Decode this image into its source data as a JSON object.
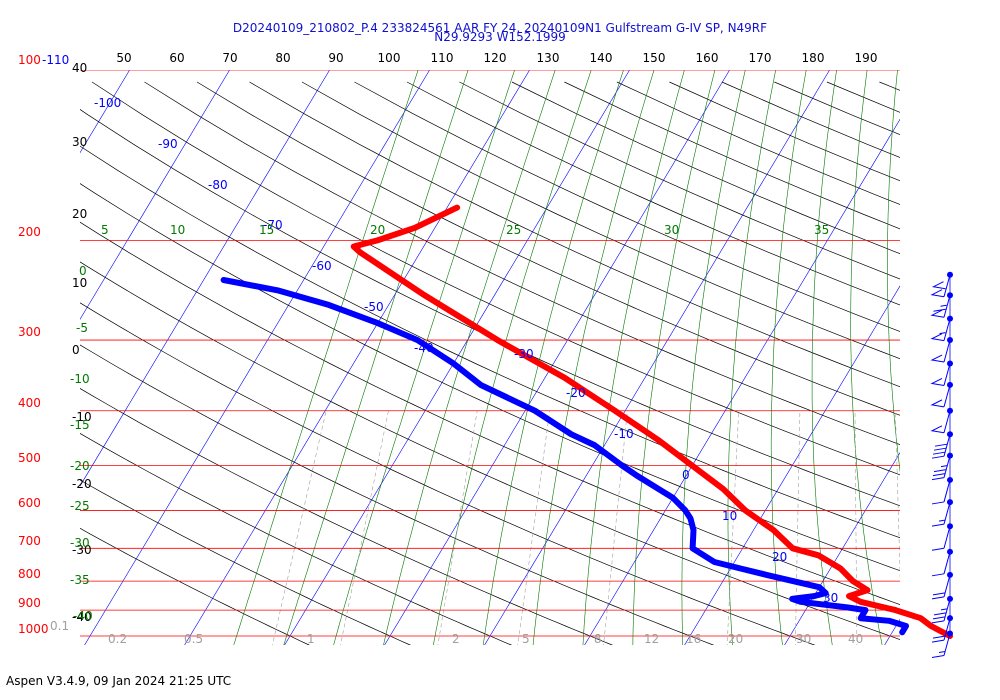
{
  "header": {
    "line1": "D20240109_210802_P.4 233824561 AAR FY 24, 20240109N1 Gulfstream G-IV SP, N49RF",
    "line2": "N29.9293 W152.1999"
  },
  "footer": {
    "text": "Aspen V3.4.9, 09 Jan 2024  21:25 UTC"
  },
  "chart_data": {
    "type": "skew-t",
    "colors": {
      "isobar": "#ff0000",
      "isotherm": "#0000ff",
      "dry_adiabat": "#000000",
      "moist_adiabat": "#007a00",
      "mixing_ratio": "#a0a0a0",
      "temperature": "#ff0000",
      "dewpoint": "#0000ff",
      "wind": "#0000ff"
    },
    "pressure_labels": [
      "100-110",
      "200",
      "300",
      "400",
      "500",
      "600",
      "700",
      "800",
      "900",
      "1000"
    ],
    "pressure_levels": [
      100,
      200,
      300,
      400,
      500,
      600,
      700,
      800,
      900,
      1000
    ],
    "top_scale_labels": [
      "50",
      "60",
      "70",
      "80",
      "90",
      "100",
      "110",
      "120",
      "130",
      "140",
      "150",
      "160",
      "170",
      "180",
      "190"
    ],
    "left_scale_labels": [
      "40",
      "30",
      "20",
      "10",
      "0",
      "-10",
      "-20",
      "-30",
      "-40"
    ],
    "isotherm_labels": [
      "-100",
      "-90",
      "-80",
      "-70",
      "-60",
      "-50",
      "-40",
      "-30",
      "-20",
      "-10",
      "0",
      "10",
      "20",
      "30"
    ],
    "moist_adiabat_labels": [
      "5",
      "10",
      "15",
      "20",
      "25",
      "30",
      "35",
      "0",
      "-5",
      "-10",
      "-15",
      "-20",
      "-25",
      "-30",
      "-35",
      "-40"
    ],
    "mixing_ratio_labels": [
      "0.1",
      "0.2",
      "0.5",
      "1",
      "2",
      "5",
      "8",
      "12",
      "16",
      "20",
      "30",
      "40"
    ],
    "temperature_profile": [
      {
        "p": 1000,
        "t": 26
      },
      {
        "p": 960,
        "t": 23.5
      },
      {
        "p": 930,
        "t": 22
      },
      {
        "p": 900,
        "t": 19
      },
      {
        "p": 870,
        "t": 15
      },
      {
        "p": 850,
        "t": 13.5
      },
      {
        "p": 830,
        "t": 15
      },
      {
        "p": 800,
        "t": 13
      },
      {
        "p": 760,
        "t": 11
      },
      {
        "p": 720,
        "t": 8
      },
      {
        "p": 700,
        "t": 5
      },
      {
        "p": 650,
        "t": 2
      },
      {
        "p": 600,
        "t": -2
      },
      {
        "p": 550,
        "t": -5.5
      },
      {
        "p": 500,
        "t": -10
      },
      {
        "p": 450,
        "t": -15
      },
      {
        "p": 400,
        "t": -21
      },
      {
        "p": 350,
        "t": -28
      },
      {
        "p": 300,
        "t": -37
      },
      {
        "p": 250,
        "t": -47
      },
      {
        "p": 210,
        "t": -56
      },
      {
        "p": 205,
        "t": -57
      },
      {
        "p": 200,
        "t": -55
      },
      {
        "p": 190,
        "t": -52
      },
      {
        "p": 175,
        "t": -49
      }
    ],
    "dewpoint_profile": [
      {
        "p": 985,
        "t": 21
      },
      {
        "p": 960,
        "t": 21
      },
      {
        "p": 940,
        "t": 19
      },
      {
        "p": 930,
        "t": 16
      },
      {
        "p": 900,
        "t": 16
      },
      {
        "p": 890,
        "t": 14
      },
      {
        "p": 870,
        "t": 9
      },
      {
        "p": 860,
        "t": 8
      },
      {
        "p": 850,
        "t": 10
      },
      {
        "p": 840,
        "t": 11
      },
      {
        "p": 820,
        "t": 10
      },
      {
        "p": 800,
        "t": 7
      },
      {
        "p": 780,
        "t": 4
      },
      {
        "p": 760,
        "t": 1
      },
      {
        "p": 740,
        "t": -2
      },
      {
        "p": 700,
        "t": -5
      },
      {
        "p": 650,
        "t": -6
      },
      {
        "p": 620,
        "t": -7
      },
      {
        "p": 600,
        "t": -8
      },
      {
        "p": 570,
        "t": -10
      },
      {
        "p": 520,
        "t": -15
      },
      {
        "p": 500,
        "t": -17
      },
      {
        "p": 460,
        "t": -21
      },
      {
        "p": 440,
        "t": -24
      },
      {
        "p": 400,
        "t": -29
      },
      {
        "p": 360,
        "t": -36
      },
      {
        "p": 330,
        "t": -40
      },
      {
        "p": 300,
        "t": -45
      },
      {
        "p": 280,
        "t": -50
      },
      {
        "p": 260,
        "t": -56
      },
      {
        "p": 245,
        "t": -62
      },
      {
        "p": 235,
        "t": -68
      }
    ],
    "wind_barbs": [
      {
        "p": 230,
        "flags": 2,
        "full": 0,
        "half": 0
      },
      {
        "p": 250,
        "flags": 1,
        "full": 1,
        "half": 1
      },
      {
        "p": 275,
        "flags": 1,
        "full": 0,
        "half": 1
      },
      {
        "p": 300,
        "flags": 1,
        "full": 0,
        "half": 0
      },
      {
        "p": 330,
        "flags": 1,
        "full": 0,
        "half": 0
      },
      {
        "p": 360,
        "flags": 1,
        "full": 0,
        "half": 0
      },
      {
        "p": 400,
        "flags": 1,
        "full": 0,
        "half": 0
      },
      {
        "p": 440,
        "flags": 0,
        "full": 4,
        "half": 0
      },
      {
        "p": 480,
        "flags": 0,
        "full": 3,
        "half": 1
      },
      {
        "p": 530,
        "flags": 0,
        "full": 1,
        "half": 0
      },
      {
        "p": 580,
        "flags": 0,
        "full": 1,
        "half": 1
      },
      {
        "p": 640,
        "flags": 0,
        "full": 1,
        "half": 0
      },
      {
        "p": 710,
        "flags": 0,
        "full": 1,
        "half": 0
      },
      {
        "p": 780,
        "flags": 0,
        "full": 2,
        "half": 0
      },
      {
        "p": 860,
        "flags": 0,
        "full": 3,
        "half": 1
      },
      {
        "p": 930,
        "flags": 0,
        "full": 2,
        "half": 0
      },
      {
        "p": 990,
        "flags": 0,
        "full": 1,
        "half": 1
      }
    ]
  }
}
